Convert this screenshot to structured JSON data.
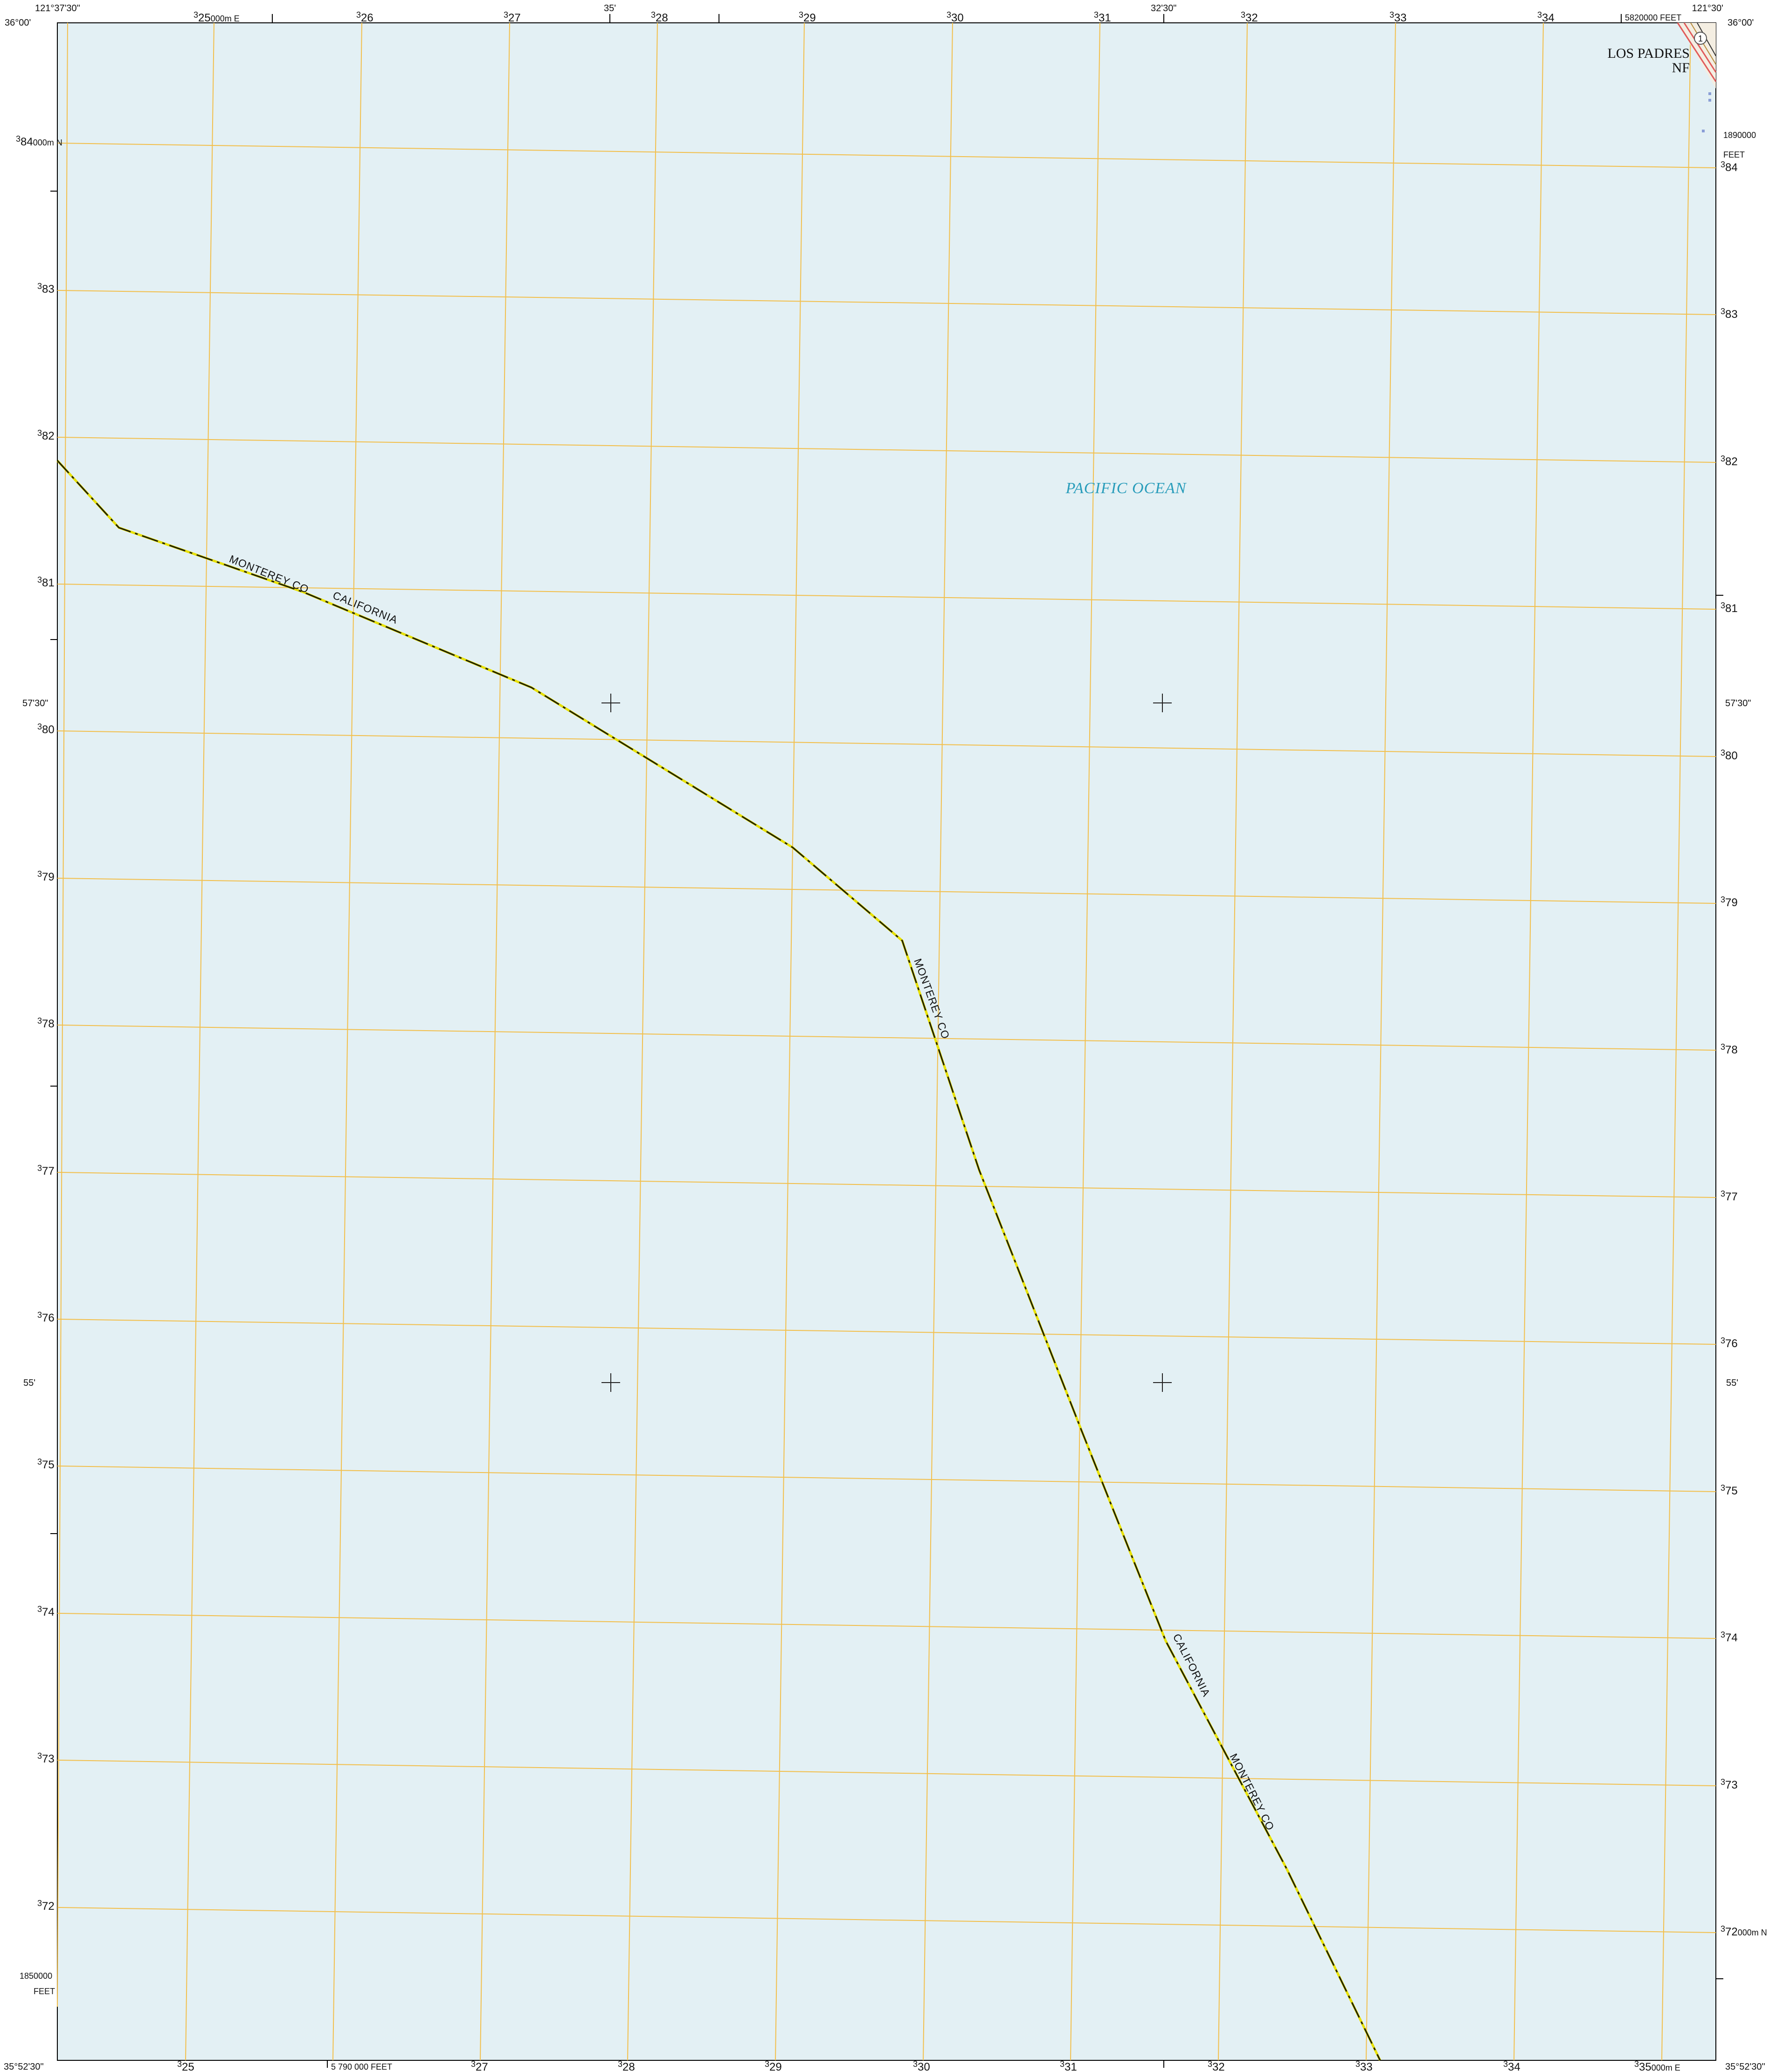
{
  "corners": {
    "top_left_lon": "121°37'30\"",
    "top_left_lat": "36°00'",
    "top_right_lon": "121°30'",
    "top_right_lat": "36°00'",
    "bottom_left_lat": "35°52'30\"",
    "bottom_right_lat": "35°52'30\""
  },
  "top_ticks": {
    "e25": "25",
    "e25_suffix": "000m E",
    "e26": "26",
    "e27": "27",
    "min35": "35'",
    "e28": "28",
    "e29": "29",
    "e30": "30",
    "e31": "31",
    "min3230": "32'30\"",
    "e32": "32",
    "e33": "33",
    "e34": "34",
    "feet_e": "5820000 FEET"
  },
  "bottom_ticks": {
    "e25": "25",
    "feet_e": "5 790 000 FEET",
    "e27": "27",
    "e28": "28",
    "e29": "29",
    "e30": "30",
    "e31": "31",
    "e32": "32",
    "e33": "33",
    "e34": "34",
    "e35": "35",
    "e35_suffix": "000m E"
  },
  "left_ticks": {
    "n84": "84",
    "n84_suffix": "000m N",
    "n83": "83",
    "n82": "82",
    "n81": "81",
    "min5730": "57'30\"",
    "n80": "80",
    "n79": "79",
    "n78": "78",
    "n77": "77",
    "n76": "76",
    "min55": "55'",
    "n75": "75",
    "n74": "74",
    "n73": "73",
    "n72": "72",
    "feet_n": "1850000",
    "feet_unit": "FEET"
  },
  "right_ticks": {
    "feet_n": "1890000",
    "feet_unit": "FEET",
    "n84": "84",
    "n83": "83",
    "n82": "82",
    "n81": "81",
    "min5730": "57'30\"",
    "n80": "80",
    "n79": "79",
    "n78": "78",
    "n77": "77",
    "n76": "76",
    "min55": "55'",
    "n75": "75",
    "n74": "74",
    "n73": "73",
    "n72": "72",
    "n72_suffix": "000m N"
  },
  "grid_prefix": "3",
  "labels": {
    "ocean": "PACIFIC OCEAN",
    "forest_line1": "LOS PADRES",
    "forest_line2": "NF",
    "route_shield": "1",
    "boundary_county": "MONTEREY CO",
    "boundary_state": "CALIFORNIA"
  },
  "colors": {
    "water": "#e3f0f4",
    "utm_grid": "#f2bf4c",
    "boundary": "#1a1a00",
    "boundary_accent": "#e8e100",
    "ocean_text": "#2a9dbb",
    "road_casing": "#e05a5a"
  }
}
